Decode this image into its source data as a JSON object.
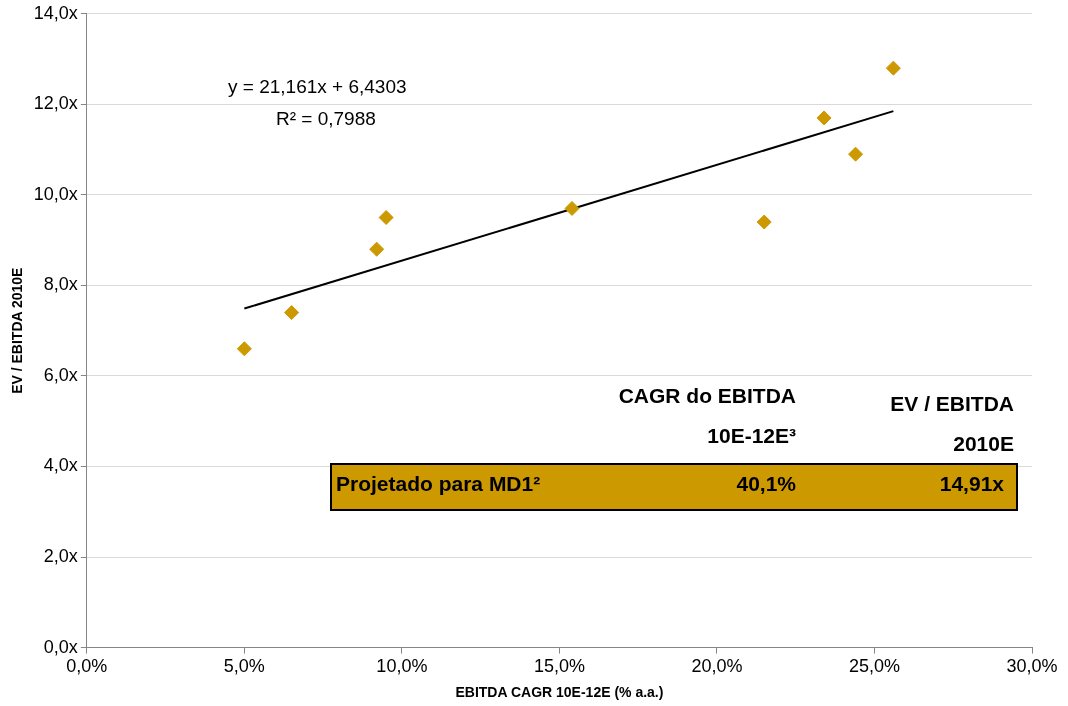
{
  "chart_data": {
    "type": "scatter",
    "xlabel": "EBITDA CAGR 10E-12E (% a.a.)",
    "ylabel": "EV / EBITDA 2010E",
    "xlim": [
      0,
      30
    ],
    "xticks": [
      {
        "value": 0,
        "label": "0,0%"
      },
      {
        "value": 5,
        "label": "5,0%"
      },
      {
        "value": 10,
        "label": "10,0%"
      },
      {
        "value": 15,
        "label": "15,0%"
      },
      {
        "value": 20,
        "label": "20,0%"
      },
      {
        "value": 25,
        "label": "25,0%"
      },
      {
        "value": 30,
        "label": "30,0%"
      }
    ],
    "ylim": [
      0,
      14
    ],
    "yticks": [
      {
        "value": 0,
        "label": "0,0x"
      },
      {
        "value": 2,
        "label": "2,0x"
      },
      {
        "value": 4,
        "label": "4,0x"
      },
      {
        "value": 6,
        "label": "6,0x"
      },
      {
        "value": 8,
        "label": "8,0x"
      },
      {
        "value": 10,
        "label": "10,0x"
      },
      {
        "value": 12,
        "label": "12,0x"
      },
      {
        "value": 14,
        "label": "14,0x"
      }
    ],
    "grid": "y",
    "legend": false,
    "series": [
      {
        "marker": "diamond",
        "color": "#cc9900",
        "x": [
          5.0,
          6.5,
          9.2,
          9.5,
          15.4,
          21.5,
          23.4,
          24.4,
          25.6
        ],
        "values": [
          6.6,
          7.4,
          8.8,
          9.5,
          9.7,
          9.4,
          11.7,
          10.9,
          12.8
        ]
      },
      {
        "type": "line",
        "marker": "none",
        "color": "#000000",
        "x": [
          5.0,
          25.6
        ],
        "values": [
          7.49,
          11.85
        ]
      }
    ],
    "annotations": [
      "y = 21,161x + 6,4303",
      "R² = 0,7988",
      "CAGR do EBITDA",
      "10E-12E³",
      "EV / EBITDA",
      "2010E",
      "Projetado para MD1²",
      "40,1%",
      "14,91x"
    ]
  }
}
